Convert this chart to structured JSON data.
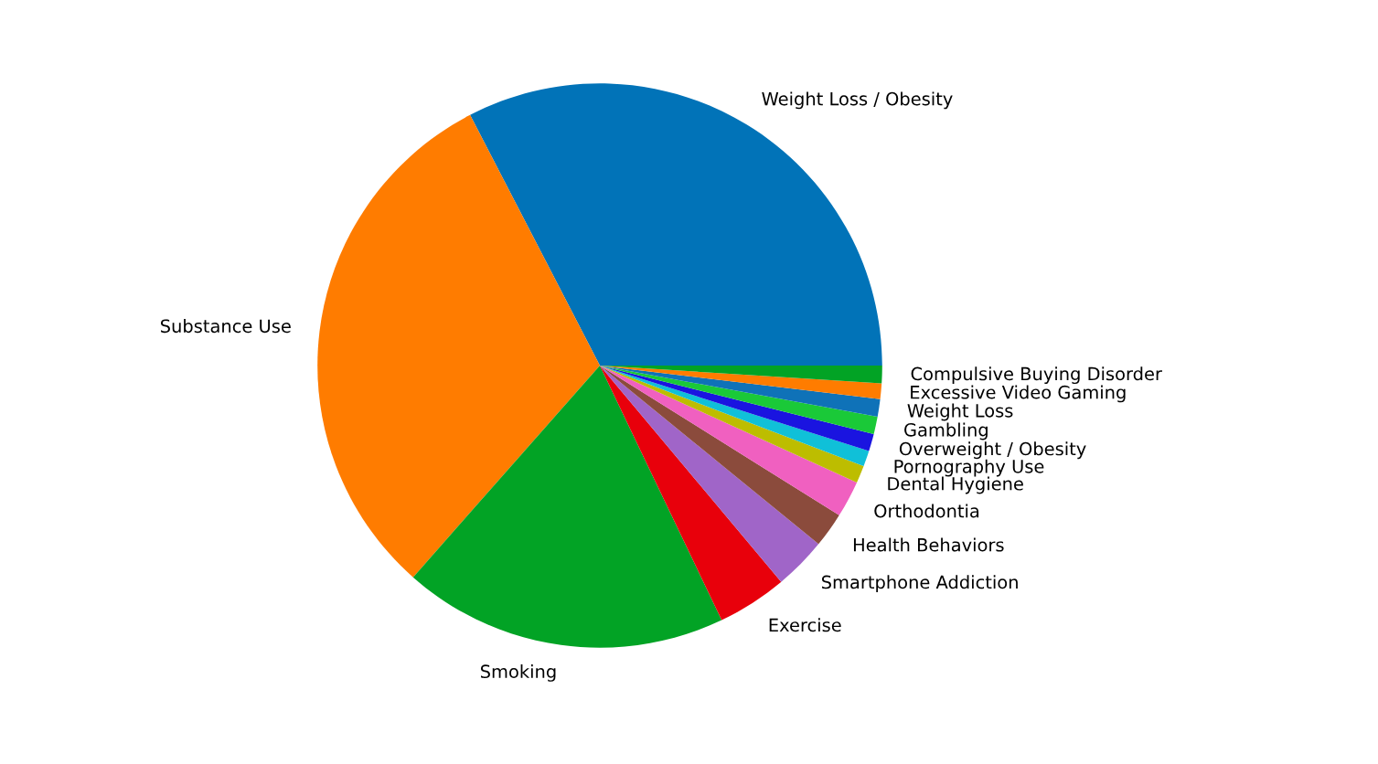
{
  "chart_data": {
    "type": "pie",
    "categories": [
      "Weight Loss / Obesity",
      "Substance Use",
      "Smoking",
      "Exercise",
      "Smartphone Addiction",
      "Health Behaviors",
      "Orthodontia",
      "Dental Hygiene",
      "Pornography Use",
      "Overweight / Obesity",
      "Gambling",
      "Weight Loss",
      "Excessive Video Gaming",
      "Compulsive Buying Disorder"
    ],
    "values": [
      32.6,
      30.9,
      18.6,
      4.0,
      3.0,
      2.0,
      2.1,
      1.0,
      0.9,
      1.0,
      1.0,
      1.0,
      0.9,
      1.0
    ],
    "colors": [
      "#0173b8",
      "#ff7c00",
      "#02a325",
      "#e8000b",
      "#a065c8",
      "#8b4b3c",
      "#f060c0",
      "#bdbd00",
      "#10c0d8",
      "#1a14e0",
      "#1ac938",
      "#0f72b8",
      "#ff7c00",
      "#02a325"
    ]
  }
}
